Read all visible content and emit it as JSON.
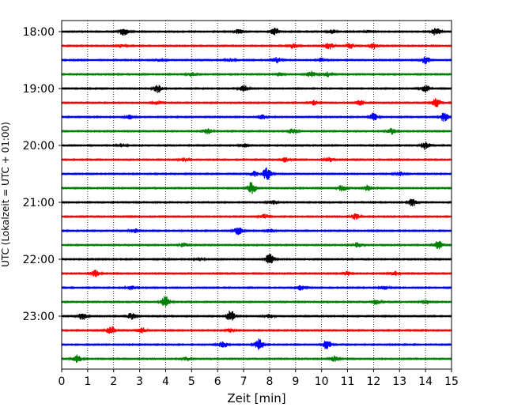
{
  "chart_data": {
    "type": "line",
    "title": "",
    "xlabel": "Zeit  [min]",
    "ylabel": "UTC (Lokalzeit = UTC + 01:00)",
    "xlim": [
      0,
      15
    ],
    "x_ticks": [
      0,
      1,
      2,
      3,
      4,
      5,
      6,
      7,
      8,
      9,
      10,
      11,
      12,
      13,
      14,
      15
    ],
    "y_ticks": [
      "18:00",
      "19:00",
      "20:00",
      "21:00",
      "22:00",
      "23:00"
    ],
    "grid": "vertical-dotted",
    "trace_interval_minutes": 15,
    "colors": [
      "#000000",
      "#ff0000",
      "#0000ff",
      "#008000"
    ],
    "traces": [
      {
        "time": "18:00",
        "color": "#000000",
        "bursts": [
          [
            2.4,
            0.6
          ],
          [
            6.8,
            0.35
          ],
          [
            8.2,
            0.55
          ],
          [
            10.4,
            0.3
          ],
          [
            11.8,
            0.25
          ],
          [
            14.4,
            0.6
          ]
        ]
      },
      {
        "time": "18:15",
        "color": "#ff0000",
        "bursts": [
          [
            2.3,
            0.25
          ],
          [
            8.9,
            0.4
          ],
          [
            10.3,
            0.5
          ],
          [
            11.1,
            0.45
          ],
          [
            12.0,
            0.45
          ]
        ]
      },
      {
        "time": "18:30",
        "color": "#0000ff",
        "bursts": [
          [
            3.8,
            0.25
          ],
          [
            6.5,
            0.25
          ],
          [
            8.3,
            0.45
          ],
          [
            10.0,
            0.3
          ],
          [
            14.0,
            0.6
          ]
        ]
      },
      {
        "time": "18:45",
        "color": "#008000",
        "bursts": [
          [
            5.0,
            0.3
          ],
          [
            8.4,
            0.3
          ],
          [
            9.6,
            0.5
          ],
          [
            10.2,
            0.4
          ]
        ]
      },
      {
        "time": "19:00",
        "color": "#000000",
        "bursts": [
          [
            3.7,
            0.65
          ],
          [
            7.0,
            0.55
          ],
          [
            14.0,
            0.6
          ]
        ]
      },
      {
        "time": "19:15",
        "color": "#ff0000",
        "bursts": [
          [
            3.7,
            0.3
          ],
          [
            9.7,
            0.35
          ],
          [
            11.5,
            0.4
          ],
          [
            14.4,
            0.75
          ]
        ]
      },
      {
        "time": "19:30",
        "color": "#0000ff",
        "bursts": [
          [
            2.6,
            0.3
          ],
          [
            7.7,
            0.35
          ],
          [
            12.0,
            0.6
          ],
          [
            14.7,
            0.7
          ]
        ]
      },
      {
        "time": "19:45",
        "color": "#008000",
        "bursts": [
          [
            5.6,
            0.45
          ],
          [
            8.9,
            0.4
          ],
          [
            12.7,
            0.45
          ]
        ]
      },
      {
        "time": "20:00",
        "color": "#000000",
        "bursts": [
          [
            2.3,
            0.3
          ],
          [
            7.0,
            0.3
          ],
          [
            14.0,
            0.65
          ]
        ]
      },
      {
        "time": "20:15",
        "color": "#ff0000",
        "bursts": [
          [
            4.7,
            0.3
          ],
          [
            8.6,
            0.35
          ],
          [
            10.3,
            0.35
          ]
        ]
      },
      {
        "time": "20:30",
        "color": "#0000ff",
        "bursts": [
          [
            7.4,
            0.4
          ],
          [
            7.9,
            1.0
          ],
          [
            13.0,
            0.3
          ]
        ]
      },
      {
        "time": "20:45",
        "color": "#008000",
        "bursts": [
          [
            7.3,
            1.0
          ],
          [
            10.8,
            0.5
          ],
          [
            11.8,
            0.5
          ]
        ]
      },
      {
        "time": "21:00",
        "color": "#000000",
        "bursts": [
          [
            8.1,
            0.3
          ],
          [
            13.5,
            0.6
          ]
        ]
      },
      {
        "time": "21:15",
        "color": "#ff0000",
        "bursts": [
          [
            7.8,
            0.35
          ],
          [
            11.3,
            0.45
          ]
        ]
      },
      {
        "time": "21:30",
        "color": "#0000ff",
        "bursts": [
          [
            2.8,
            0.35
          ],
          [
            6.8,
            0.6
          ],
          [
            8.0,
            0.3
          ]
        ]
      },
      {
        "time": "21:45",
        "color": "#008000",
        "bursts": [
          [
            4.7,
            0.3
          ],
          [
            11.4,
            0.45
          ],
          [
            14.5,
            0.65
          ]
        ]
      },
      {
        "time": "22:00",
        "color": "#000000",
        "bursts": [
          [
            8.0,
            0.8
          ],
          [
            5.3,
            0.25
          ]
        ]
      },
      {
        "time": "22:15",
        "color": "#ff0000",
        "bursts": [
          [
            1.3,
            0.5
          ],
          [
            11.0,
            0.3
          ],
          [
            12.8,
            0.35
          ]
        ]
      },
      {
        "time": "22:30",
        "color": "#0000ff",
        "bursts": [
          [
            2.7,
            0.35
          ],
          [
            9.2,
            0.35
          ],
          [
            12.4,
            0.3
          ]
        ]
      },
      {
        "time": "22:45",
        "color": "#008000",
        "bursts": [
          [
            4.0,
            0.9
          ],
          [
            12.1,
            0.4
          ],
          [
            14.0,
            0.3
          ]
        ]
      },
      {
        "time": "23:00",
        "color": "#000000",
        "bursts": [
          [
            0.8,
            0.55
          ],
          [
            2.7,
            0.5
          ],
          [
            6.5,
            0.85
          ],
          [
            8.0,
            0.3
          ]
        ]
      },
      {
        "time": "23:15",
        "color": "#ff0000",
        "bursts": [
          [
            1.9,
            0.6
          ],
          [
            3.1,
            0.4
          ],
          [
            6.5,
            0.3
          ]
        ]
      },
      {
        "time": "23:30",
        "color": "#0000ff",
        "bursts": [
          [
            6.2,
            0.5
          ],
          [
            7.6,
            0.9
          ],
          [
            10.2,
            0.7
          ]
        ]
      },
      {
        "time": "23:45",
        "color": "#008000",
        "bursts": [
          [
            0.6,
            0.6
          ],
          [
            4.8,
            0.25
          ],
          [
            10.5,
            0.45
          ]
        ]
      }
    ]
  }
}
